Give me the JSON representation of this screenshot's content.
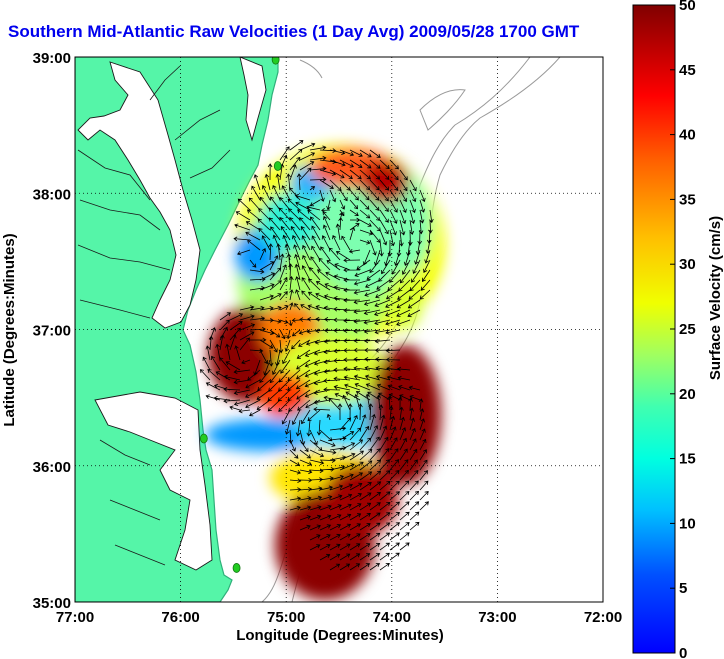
{
  "title": "Southern Mid-Atlantic Raw Velocities (1 Day Avg) 2009/05/28 1700 GMT",
  "colors": {
    "land": "#55f5a8",
    "land_edge": "#2fb07a",
    "ocean": "#ffffff",
    "isobath": "#9a9a9a",
    "arrow": "#000000",
    "station": "#22cc22",
    "title": "#0000ee"
  },
  "map": {
    "longitude_range_deg": [
      -77,
      -72
    ],
    "latitude_range_deg": [
      35,
      39
    ],
    "xlabel": "Longitude (Degrees:Minutes)",
    "ylabel": "Latitude (Degrees:Minutes)",
    "x_ticks": [
      "77:00",
      "76:00",
      "75:00",
      "74:00",
      "73:00",
      "72:00"
    ],
    "y_ticks": [
      "35:00",
      "36:00",
      "37:00",
      "38:00",
      "39:00"
    ],
    "grid": "dotted"
  },
  "colorbar": {
    "label": "Surface Velocity (cm/s)",
    "range": [
      0,
      50
    ],
    "ticks": [
      "0",
      "5",
      "10",
      "15",
      "20",
      "25",
      "30",
      "35",
      "40",
      "45",
      "50"
    ],
    "colormap": "jet"
  },
  "stations": [
    {
      "lon": -75.1,
      "lat": 38.98
    },
    {
      "lon": -75.08,
      "lat": 38.2
    },
    {
      "lon": -75.78,
      "lat": 36.2
    },
    {
      "lon": -75.47,
      "lat": 35.25
    }
  ]
}
